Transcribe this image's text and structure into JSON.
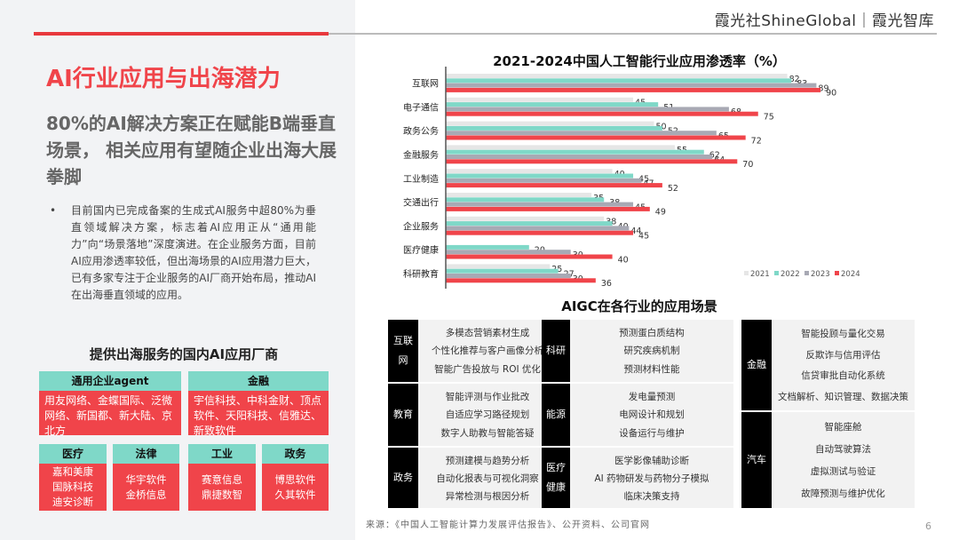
{
  "header": {
    "brand": "霞光社ShineGlobal｜霞光智库"
  },
  "left": {
    "title": "AI行业应用与出海潜力",
    "subtitle": "80%的AI解决方案正在赋能B端垂直场景， 相关应用有望随企业出海大展拳脚",
    "bullet_marker": "•",
    "bullet": "目前国内已完成备案的生成式AI服务中超80%为垂直领域解决方案，标志着AI应用正从“通用能力”向“场景落地”深度演进。在企业服务方面，目前AI应用渗透率较低，但出海场景的AI应用潜力巨大，已有多家专注于企业服务的AI厂商开始布局，推动AI在出海垂直领域的应用。",
    "vendors_title": "提供出海服务的国内AI应用厂商",
    "vendors": [
      {
        "category": "通用企业agent",
        "companies": "用友网络、金蝶国际、泛微网络、新国都、新大陆、京北方"
      },
      {
        "category": "金融",
        "companies": "宇信科技、中科金财、顶点软件、天阳科技、信雅达、新致软件"
      },
      {
        "category": "医疗",
        "companies": "嘉和美康\n国脉科技\n迪安诊断"
      },
      {
        "category": "法律",
        "companies": "华宇软件\n金桥信息"
      },
      {
        "category": "工业",
        "companies": "赛意信息\n鼎捷数智"
      },
      {
        "category": "政务",
        "companies": "博思软件\n久其软件"
      }
    ]
  },
  "chart_data": {
    "type": "bar",
    "orientation": "horizontal",
    "title": "2021-2024中国人工智能行业应用渗透率（%）",
    "categories": [
      "互联网",
      "电子通信",
      "政务公务",
      "金融服务",
      "工业制造",
      "交通出行",
      "企业服务",
      "医疗健康",
      "科研教育"
    ],
    "series": [
      {
        "name": "2021",
        "color": "#e6e6e6",
        "values": [
          82,
          45,
          50,
          55,
          40,
          35,
          38,
          null,
          25
        ]
      },
      {
        "name": "2022",
        "color": "#7fd8c8",
        "values": [
          83,
          51,
          52,
          62,
          45,
          38,
          40,
          20,
          27
        ]
      },
      {
        "name": "2023",
        "color": "#a8a9b4",
        "values": [
          89,
          68,
          65,
          64,
          47,
          45,
          44,
          30,
          30
        ]
      },
      {
        "name": "2024",
        "color": "#f0444a",
        "values": [
          90,
          75,
          72,
          70,
          52,
          49,
          45,
          40,
          36
        ]
      }
    ],
    "xlim": [
      0,
      100
    ],
    "grid": false,
    "legend": "bottom-right"
  },
  "aigc": {
    "title": "AIGC在各行业的应用场景",
    "groups": [
      {
        "industry": "互联网",
        "items": [
          "多模态营销素材生成",
          "个性化推荐与客户画像分析",
          "智能广告投放与 ROI 优化"
        ]
      },
      {
        "industry": "教育",
        "items": [
          "智能评测与作业批改",
          "自适应学习路径规划",
          "数字人助教与智能答疑"
        ]
      },
      {
        "industry": "政务",
        "items": [
          "预测建模与趋势分析",
          "自动化报表与可视化洞察",
          "异常检测与根因分析"
        ]
      },
      {
        "industry": "科研",
        "items": [
          "预测蛋白质结构",
          "研究疾病机制",
          "预测材料性能"
        ]
      },
      {
        "industry": "能源",
        "items": [
          "发电量预测",
          "电网设计和规划",
          "设备运行与维护"
        ]
      },
      {
        "industry": "医疗健康",
        "items": [
          "医学影像辅助诊断",
          "AI 药物研发与药物分子模拟",
          "临床决策支持"
        ]
      },
      {
        "industry": "金融",
        "items": [
          "智能投顾与量化交易",
          "反欺诈与信用评估",
          "信贷审批自动化系统",
          "文档解析、知识管理、数据决策"
        ]
      },
      {
        "industry": "汽车",
        "items": [
          "智能座舱",
          "自动驾驶算法",
          "虚拟测试与验证",
          "故障预测与维护优化"
        ]
      }
    ]
  },
  "footer": {
    "source": "来源：《中国人工智能计算力发展评估报告》、公开资料、公司官网",
    "page": "6"
  }
}
